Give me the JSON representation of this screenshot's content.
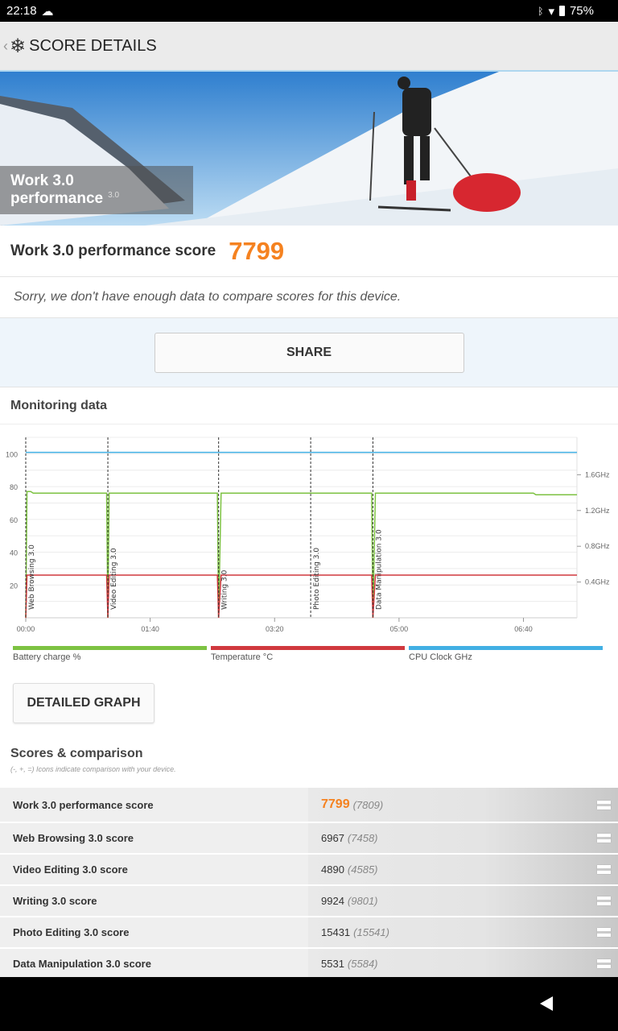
{
  "status_bar": {
    "time": "22:18",
    "battery": "75%",
    "icons": [
      "cloud-icon",
      "bluetooth-icon",
      "data-arrows-icon",
      "wifi-icon",
      "battery-icon"
    ]
  },
  "app_bar": {
    "title": "SCORE DETAILS",
    "back_icon": "chevron-left-icon",
    "logo_icon": "snowflake-icon"
  },
  "hero": {
    "title": "Work 3.0 performance",
    "version": "3.0"
  },
  "score": {
    "label": "Work 3.0 performance score",
    "value": "7799",
    "color": "#f58220"
  },
  "compare_message": "Sorry, we don't have enough data to compare scores for this device.",
  "share_label": "SHARE",
  "monitoring": {
    "title": "Monitoring data",
    "detailed_graph_label": "DETAILED GRAPH"
  },
  "chart_data": {
    "type": "line",
    "x_ticks": [
      "00:00",
      "01:40",
      "03:20",
      "05:00",
      "06:40"
    ],
    "x_tick_seconds": [
      0,
      100,
      200,
      300,
      400
    ],
    "x_range_seconds": [
      0,
      443
    ],
    "y_left_ticks": [
      20,
      40,
      60,
      80,
      100
    ],
    "y_left_range": [
      0,
      110
    ],
    "y_right_ticks": [
      "0.4GHz",
      "0.8GHz",
      "1.2GHz",
      "1.6GHz"
    ],
    "y_right_values": [
      0.4,
      0.8,
      1.2,
      1.6
    ],
    "y_right_range": [
      0,
      2.0
    ],
    "grid": true,
    "markers": [
      {
        "label": "Web Browsing 3.0",
        "t": 0
      },
      {
        "label": "Video Editing 3.0",
        "t": 66
      },
      {
        "label": "Writing 3.0",
        "t": 155
      },
      {
        "label": "Photo Editing 3.0",
        "t": 229
      },
      {
        "label": "Data Manipulation 3.0",
        "t": 279
      }
    ],
    "legend": [
      {
        "name": "Battery charge %",
        "color": "#7dc242"
      },
      {
        "name": "Temperature °C",
        "color": "#d0393e"
      },
      {
        "name": "CPU Clock GHz",
        "color": "#41b0e4"
      }
    ],
    "series": [
      {
        "name": "Battery charge %",
        "axis": "left",
        "points": [
          [
            0,
            0
          ],
          [
            1,
            77
          ],
          [
            4,
            77
          ],
          [
            6,
            76
          ],
          [
            65,
            76
          ],
          [
            66,
            0
          ],
          [
            67,
            76
          ],
          [
            154,
            76
          ],
          [
            155,
            0
          ],
          [
            157,
            76
          ],
          [
            278,
            76
          ],
          [
            279,
            0
          ],
          [
            281,
            76
          ],
          [
            408,
            76
          ],
          [
            410,
            75
          ],
          [
            443,
            75
          ]
        ]
      },
      {
        "name": "Temperature °C",
        "axis": "left",
        "points": [
          [
            0,
            0
          ],
          [
            1,
            26
          ],
          [
            65,
            26
          ],
          [
            66,
            0
          ],
          [
            67,
            26
          ],
          [
            154,
            26
          ],
          [
            155,
            0
          ],
          [
            157,
            26
          ],
          [
            278,
            26
          ],
          [
            279,
            0
          ],
          [
            281,
            26
          ],
          [
            443,
            26
          ]
        ]
      },
      {
        "name": "CPU Clock GHz",
        "axis": "right",
        "points": [
          [
            0,
            1.85
          ],
          [
            443,
            1.85
          ]
        ]
      }
    ]
  },
  "scores": {
    "title": "Scores & comparison",
    "subtitle": "(-, +, =) Icons indicate comparison with your device.",
    "rows": [
      {
        "label": "Work 3.0 performance score",
        "value": "7799",
        "compare": "(7809)",
        "icon": "equal-icon"
      },
      {
        "label": "Web Browsing 3.0 score",
        "value": "6967",
        "compare": "(7458)",
        "icon": "equal-icon"
      },
      {
        "label": "Video Editing 3.0 score",
        "value": "4890",
        "compare": "(4585)",
        "icon": "equal-icon"
      },
      {
        "label": "Writing 3.0 score",
        "value": "9924",
        "compare": "(9801)",
        "icon": "equal-icon"
      },
      {
        "label": "Photo Editing 3.0 score",
        "value": "15431",
        "compare": "(15541)",
        "icon": "equal-icon"
      },
      {
        "label": "Data Manipulation 3.0 score",
        "value": "5531",
        "compare": "(5584)",
        "icon": "equal-icon"
      }
    ]
  }
}
